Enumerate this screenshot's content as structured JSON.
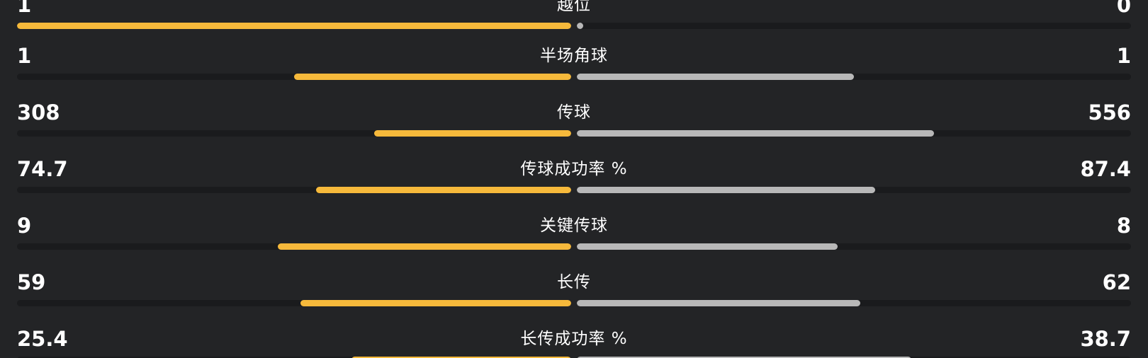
{
  "colors": {
    "background": "#232426",
    "track": "#1a1b1d",
    "home_bar": "#f6b93b",
    "away_bar": "#b8b8b8",
    "text": "#ffffff"
  },
  "rows": [
    {
      "label": "越位",
      "home": "1",
      "away": "0",
      "home_fraction": 1.0,
      "away_fraction": 0.0
    },
    {
      "label": "半场角球",
      "home": "1",
      "away": "1",
      "home_fraction": 0.5,
      "away_fraction": 0.5
    },
    {
      "label": "传球",
      "home": "308",
      "away": "556",
      "home_fraction": 0.356,
      "away_fraction": 0.644
    },
    {
      "label": "传球成功率 %",
      "home": "74.7",
      "away": "87.4",
      "home_fraction": 0.461,
      "away_fraction": 0.539
    },
    {
      "label": "关键传球",
      "home": "9",
      "away": "8",
      "home_fraction": 0.529,
      "away_fraction": 0.471
    },
    {
      "label": "长传",
      "home": "59",
      "away": "62",
      "home_fraction": 0.488,
      "away_fraction": 0.512
    },
    {
      "label": "长传成功率 %",
      "home": "25.4",
      "away": "38.7",
      "home_fraction": 0.396,
      "away_fraction": 0.604
    }
  ]
}
